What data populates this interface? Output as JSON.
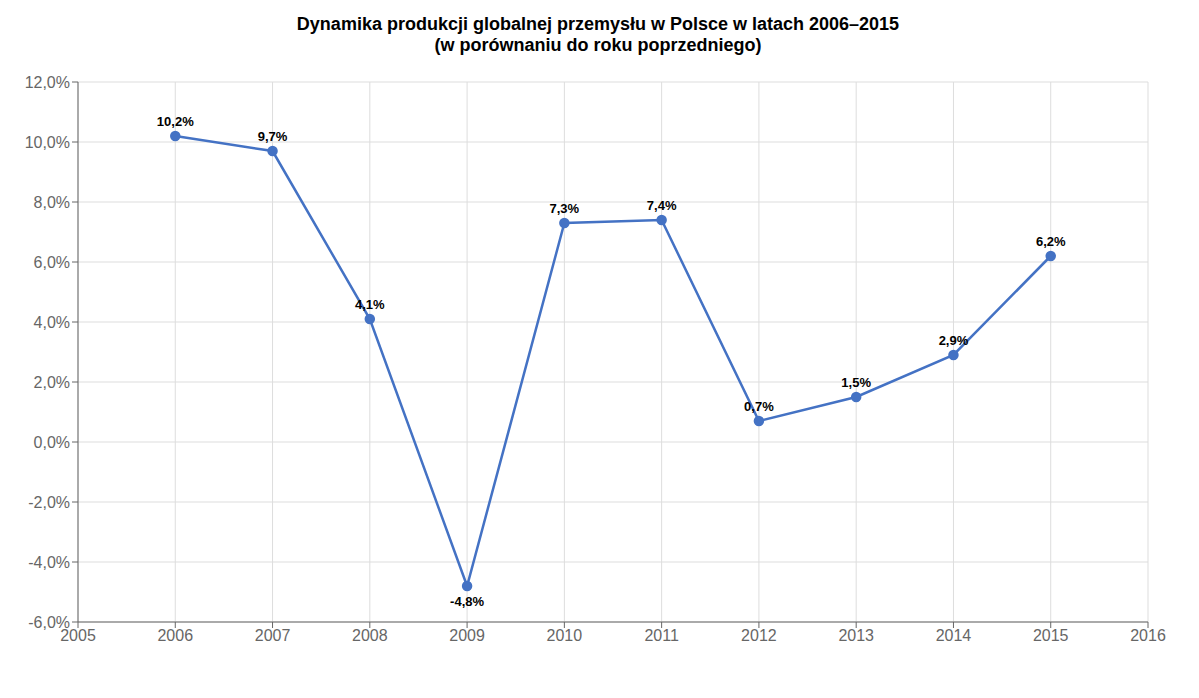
{
  "chart_data": {
    "type": "line",
    "title": "Dynamika produkcji globalnej przemysłu w Polsce w latach 2006–2015",
    "subtitle": "(w porównaniu do roku poprzedniego)",
    "x": [
      2006,
      2007,
      2008,
      2009,
      2010,
      2011,
      2012,
      2013,
      2014,
      2015
    ],
    "values": [
      10.2,
      9.7,
      4.1,
      -4.8,
      7.3,
      7.4,
      0.7,
      1.5,
      2.9,
      6.2
    ],
    "value_labels": [
      "10,2%",
      "9,7%",
      "4,1%",
      "-4,8%",
      "7,3%",
      "7,4%",
      "0,7%",
      "1,5%",
      "2,9%",
      "6,2%"
    ],
    "color": "#4472C4",
    "marker": "circle",
    "xlim": [
      2005,
      2016
    ],
    "xticks": [
      2005,
      2006,
      2007,
      2008,
      2009,
      2010,
      2011,
      2012,
      2013,
      2014,
      2015,
      2016
    ],
    "ylim": [
      -6.0,
      12.0
    ],
    "yticks": [
      {
        "value": -6.0,
        "label": "-6,0%"
      },
      {
        "value": -4.0,
        "label": "-4,0%"
      },
      {
        "value": -2.0,
        "label": "-2,0%"
      },
      {
        "value": 0.0,
        "label": "0,0%"
      },
      {
        "value": 2.0,
        "label": "2,0%"
      },
      {
        "value": 4.0,
        "label": "4,0%"
      },
      {
        "value": 6.0,
        "label": "6,0%"
      },
      {
        "value": 8.0,
        "label": "8,0%"
      },
      {
        "value": 10.0,
        "label": "10,0%"
      },
      {
        "value": 12.0,
        "label": "12,0%"
      }
    ],
    "grid": true,
    "data_labels": true
  }
}
